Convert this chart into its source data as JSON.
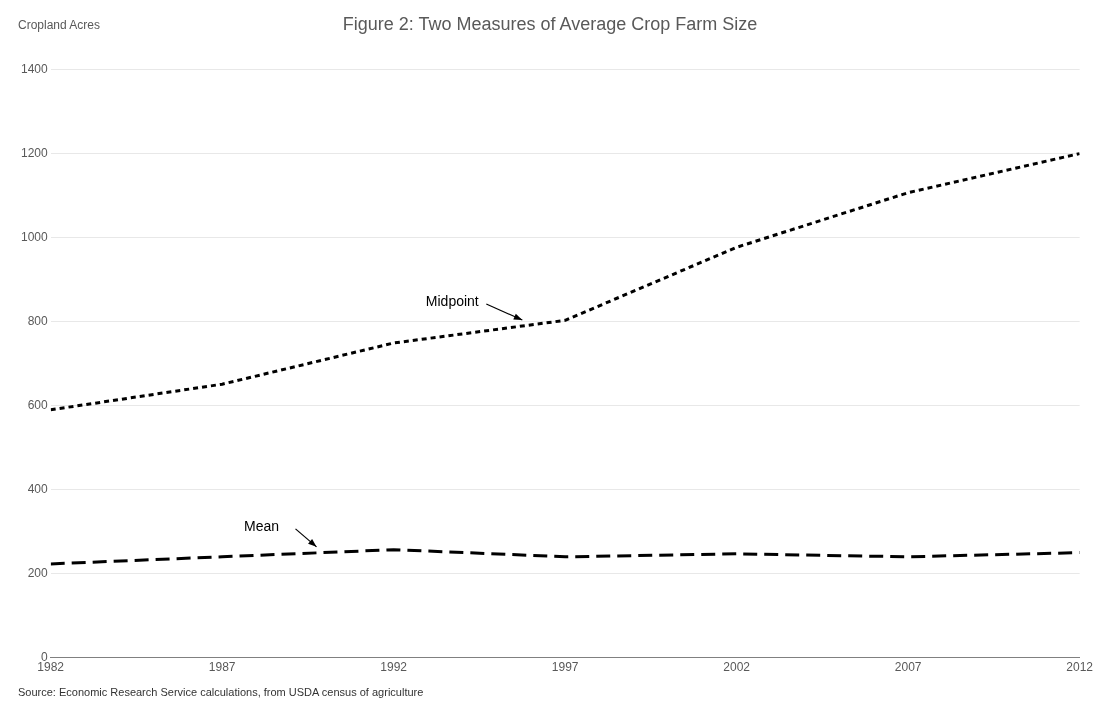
{
  "chart_data": {
    "type": "line",
    "title": "Figure 2: Two Measures of Average Crop Farm Size",
    "ylabel": "Cropland Acres",
    "x": [
      1982,
      1987,
      1992,
      1997,
      2002,
      2007,
      2012
    ],
    "xlim": [
      1982,
      2012
    ],
    "xticks": [
      1982,
      1987,
      1992,
      1997,
      2002,
      2007,
      2012
    ],
    "ylim": [
      0,
      1400
    ],
    "yticks": [
      0,
      200,
      400,
      600,
      800,
      1000,
      1200,
      1400
    ],
    "grid": "y",
    "legend": false,
    "marker": "none",
    "series": [
      {
        "name": "Midpoint",
        "color": "#000000",
        "line_style": "dotted",
        "values": [
          590,
          651,
          749,
          803,
          977,
          1107,
          1200
        ]
      },
      {
        "name": "Mean",
        "color": "#000000",
        "line_style": "dashed",
        "values": [
          223,
          240,
          257,
          240,
          247,
          240,
          250
        ]
      }
    ],
    "annotations": [
      "Source: Economic Research Service calculations, from USDA census of agriculture"
    ]
  }
}
